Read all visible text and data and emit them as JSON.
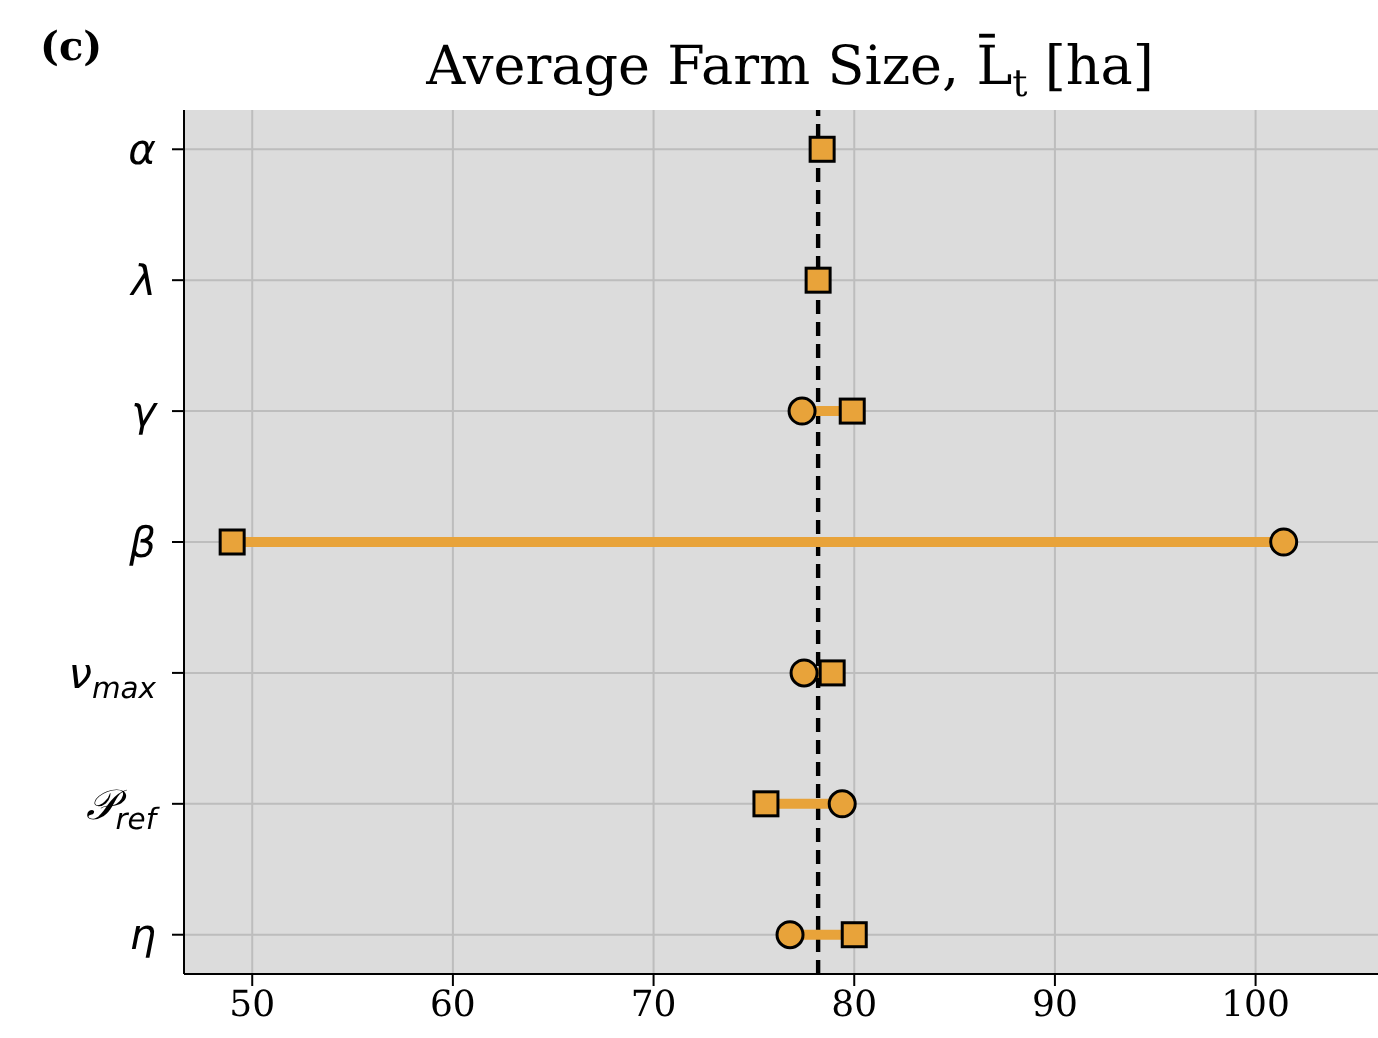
{
  "chart_data": {
    "type": "scatter",
    "title": "Average Farm Size, L̄$_{t}$  [ha]",
    "annotations": [
      "(c)"
    ],
    "categories": [
      "α",
      "λ",
      "γ",
      "β",
      "ν$_{max}$",
      "𝒫$_{ref}$",
      "η"
    ],
    "series": [
      {
        "name": null,
        "color": "#e8a33a",
        "marker": "square",
        "values": [
          78.4,
          78.2,
          79.9,
          49.0,
          78.9,
          75.6,
          80.0
        ]
      },
      {
        "name": null,
        "color": "#e8a33a",
        "marker": "circle",
        "values": [
          null,
          null,
          77.4,
          101.4,
          77.5,
          79.4,
          76.8
        ]
      }
    ],
    "xlim": [
      46.6,
      106.1
    ],
    "xticks": [
      50,
      60,
      70,
      80,
      90,
      100
    ],
    "ref_lines": [
      {
        "axis": "x",
        "value": 78.2,
        "label": null,
        "color": "#000000",
        "line_style": "dashed"
      }
    ],
    "orientation": "horizontal",
    "grid": true,
    "legend": false
  }
}
